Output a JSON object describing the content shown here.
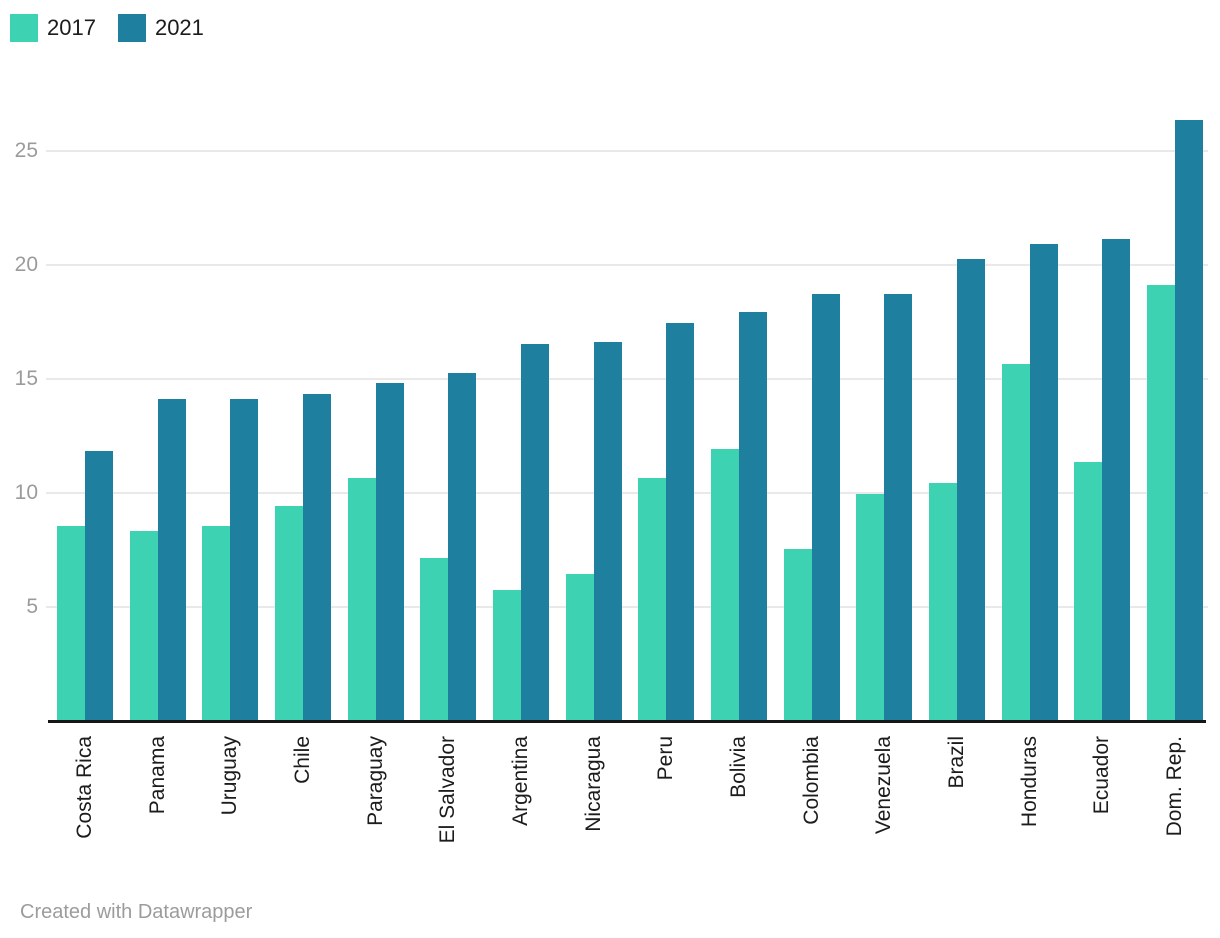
{
  "legend": {
    "items": [
      {
        "label": "2017",
        "color": "#3dd2b1"
      },
      {
        "label": "2021",
        "color": "#1f7f9e"
      }
    ]
  },
  "footer": {
    "text": "Created with Datawrapper"
  },
  "colors": {
    "background": "#ffffff",
    "series_2017": "#3dd2b1",
    "series_2021": "#1f7f9e",
    "gridline": "#e9e9e9",
    "axis_line": "#161616",
    "y_tick_label": "#9b9b9b",
    "category_label": "#1c1c1c",
    "footer_text": "#9c9c9c"
  },
  "chart_data": {
    "type": "bar",
    "title": "",
    "xlabel": "",
    "ylabel": "",
    "grid": true,
    "legend_position": "top-left",
    "categories": [
      "Costa Rica",
      "Panama",
      "Uruguay",
      "Chile",
      "Paraguay",
      "El Salvador",
      "Argentina",
      "Nicaragua",
      "Peru",
      "Bolivia",
      "Colombia",
      "Venezuela",
      "Brazil",
      "Honduras",
      "Ecuador",
      "Dom. Rep."
    ],
    "series": [
      {
        "name": "2017",
        "color": "#3dd2b1",
        "values": [
          8.5,
          8.3,
          8.5,
          9.4,
          10.6,
          7.1,
          5.7,
          6.4,
          10.6,
          11.9,
          7.5,
          9.9,
          10.4,
          15.6,
          11.3,
          19.1
        ]
      },
      {
        "name": "2021",
        "color": "#1f7f9e",
        "values": [
          11.8,
          14.1,
          14.1,
          14.3,
          14.8,
          15.2,
          16.5,
          16.6,
          17.4,
          17.9,
          18.7,
          18.7,
          20.2,
          20.9,
          21.1,
          26.3
        ]
      }
    ],
    "yticks": [
      5,
      10,
      15,
      20,
      25
    ],
    "ylim": [
      0,
      27.4
    ]
  }
}
